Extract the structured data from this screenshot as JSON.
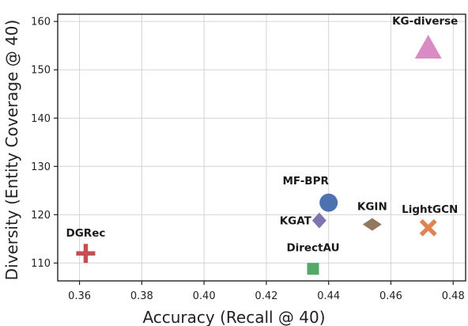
{
  "chart_data": {
    "type": "scatter",
    "title": "",
    "xlabel": "Accuracy (Recall @ 40)",
    "ylabel": "Diversity (Entity Coverage @ 40)",
    "xlim": [
      0.353,
      0.484
    ],
    "ylim": [
      106.3,
      161.5
    ],
    "xticks": [
      "0.36",
      "0.38",
      "0.40",
      "0.42",
      "0.44",
      "0.46",
      "0.48"
    ],
    "yticks": [
      "110",
      "120",
      "130",
      "140",
      "150",
      "160"
    ],
    "grid": true,
    "legend": "none",
    "points": [
      {
        "label": "DGRec",
        "x": 0.362,
        "y": 112.0,
        "marker": "plus",
        "color": "#c44e52"
      },
      {
        "label": "DirectAU",
        "x": 0.435,
        "y": 108.8,
        "marker": "square",
        "color": "#55a868"
      },
      {
        "label": "KGAT",
        "x": 0.437,
        "y": 118.8,
        "marker": "diamond",
        "color": "#8172b2"
      },
      {
        "label": "MF-BPR",
        "x": 0.44,
        "y": 122.5,
        "marker": "circle",
        "color": "#4c72b0"
      },
      {
        "label": "KGIN",
        "x": 0.454,
        "y": 118.0,
        "marker": "thin-diamond",
        "color": "#937860"
      },
      {
        "label": "LightGCN",
        "x": 0.472,
        "y": 117.3,
        "marker": "x",
        "color": "#dd8452"
      },
      {
        "label": "KG-diverse",
        "x": 0.472,
        "y": 154.3,
        "marker": "triangle",
        "color": "#da8bc3"
      }
    ]
  }
}
